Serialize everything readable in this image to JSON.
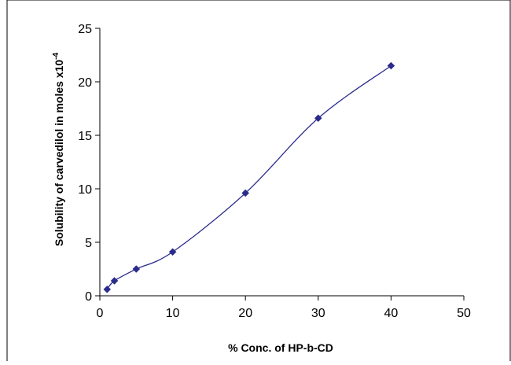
{
  "chart_data": {
    "type": "line",
    "title": "",
    "xlabel": "% Conc. of HP-b-CD",
    "ylabel_main": "Solubility of carvedilol in moles x10",
    "ylabel_exponent": "-4",
    "x": [
      1,
      2,
      5,
      10,
      20,
      30,
      40
    ],
    "series": [
      {
        "values": [
          0.6,
          1.4,
          2.5,
          4.1,
          9.6,
          16.6,
          21.5
        ]
      }
    ],
    "xlim": [
      0,
      50
    ],
    "ylim": [
      0,
      25
    ],
    "xticks": [
      "0",
      "10",
      "20",
      "30",
      "40",
      "50"
    ],
    "yticks": [
      "0",
      "5",
      "10",
      "15",
      "20",
      "25"
    ],
    "grid": false,
    "legend": "none",
    "series_color": "#2b2b8c",
    "marker": "diamond"
  }
}
